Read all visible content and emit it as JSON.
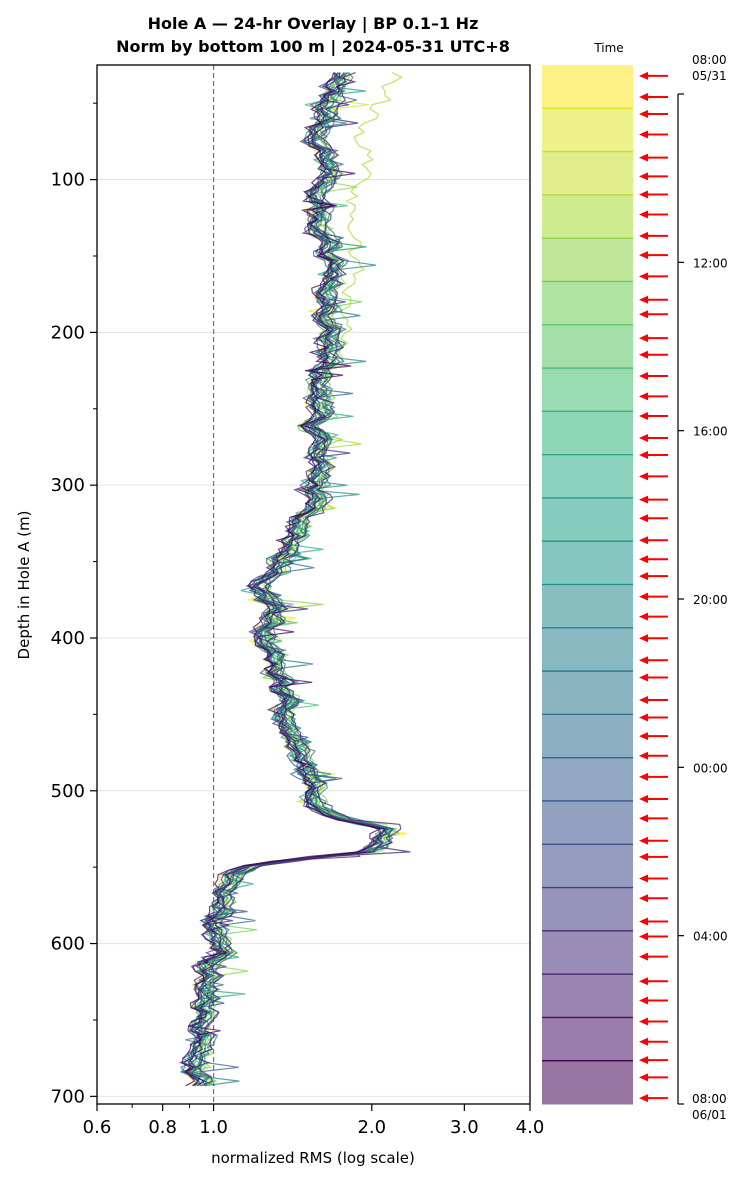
{
  "chart_data": {
    "type": "line",
    "title_line1": "Hole A — 24-hr Overlay  |  BP 0.1–1 Hz",
    "title_line2": "Norm by bottom 100 m  |  2024-05-31 UTC+8",
    "xlabel": "normalized RMS  (log scale)",
    "ylabel": "Depth in Hole A (m)",
    "x_scale": "log",
    "xlim": [
      0.6,
      4.0
    ],
    "ylim": [
      705,
      25
    ],
    "x_ticks": [
      0.6,
      0.8,
      1.0,
      2.0,
      3.0,
      4.0
    ],
    "x_tick_labels": [
      "0.6",
      "0.8",
      "1.0",
      "2.0",
      "3.0",
      "4.0"
    ],
    "y_ticks": [
      100,
      200,
      300,
      400,
      500,
      600,
      700
    ],
    "y_tick_labels": [
      "100",
      "200",
      "300",
      "400",
      "500",
      "600",
      "700"
    ],
    "reference_line_x": 1.0,
    "n_curves": 24,
    "colormap": "viridis (yellow = early, dark purple = late)",
    "median_profile": {
      "depth": [
        30,
        50,
        70,
        90,
        110,
        130,
        150,
        170,
        190,
        210,
        230,
        250,
        270,
        290,
        310,
        330,
        345,
        360,
        380,
        400,
        420,
        440,
        460,
        480,
        500,
        515,
        525,
        532,
        540,
        548,
        560,
        575,
        590,
        605,
        620,
        640,
        660,
        680,
        695
      ],
      "rms": [
        1.72,
        1.66,
        1.6,
        1.66,
        1.58,
        1.58,
        1.72,
        1.67,
        1.62,
        1.65,
        1.62,
        1.58,
        1.57,
        1.6,
        1.62,
        1.45,
        1.38,
        1.25,
        1.3,
        1.28,
        1.33,
        1.36,
        1.4,
        1.45,
        1.55,
        1.62,
        2.1,
        2.15,
        1.95,
        1.15,
        1.1,
        1.05,
        1.02,
        1.05,
        1.0,
        0.97,
        0.95,
        0.93,
        1.0
      ]
    },
    "colorbar": {
      "label": "Time",
      "top_label": [
        "08:00",
        "05/31"
      ],
      "bottom_label": [
        "08:00",
        "06/01"
      ],
      "tick_labels": [
        "12:00",
        "16:00",
        "20:00",
        "00:00",
        "04:00"
      ],
      "n_bands": 24
    },
    "event_arrows": {
      "color": "#ff0000",
      "count": 52
    }
  }
}
